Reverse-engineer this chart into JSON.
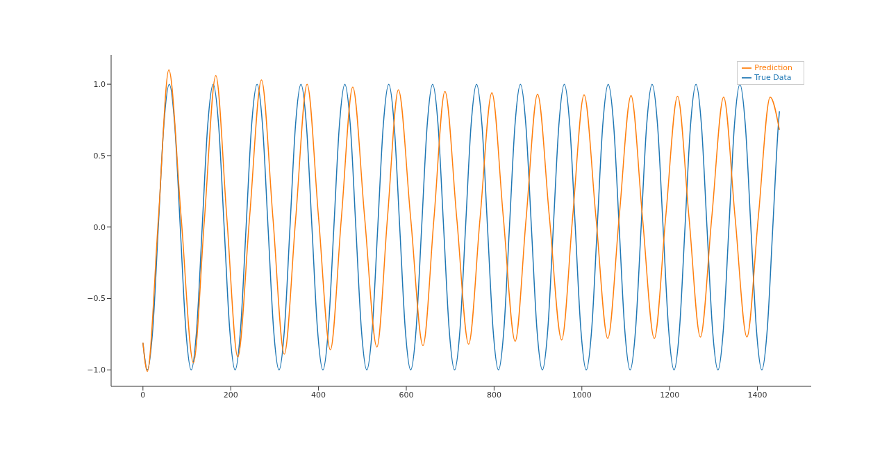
{
  "chart_data": {
    "type": "line",
    "xlim": [
      -72.5,
      1522.5
    ],
    "ylim": [
      -1.115,
      1.205
    ],
    "xticks": [
      0,
      200,
      400,
      600,
      800,
      1000,
      1200,
      1400
    ],
    "yticks": [
      {
        "value": -1,
        "label": "−1.0"
      },
      {
        "value": -0.5,
        "label": "−0.5"
      },
      {
        "value": 0,
        "label": "0.0"
      },
      {
        "value": 0.5,
        "label": "0.5"
      },
      {
        "value": 1,
        "label": "1.0"
      }
    ],
    "grid": false,
    "legend": "top right",
    "marker": "none",
    "line_style": "solid",
    "series": [
      {
        "name": "True Data",
        "color": "#1f77b4",
        "x": [
          0,
          10,
          22.5,
          35,
          47.5,
          60,
          72.5,
          85,
          97.5,
          110,
          122.5,
          135,
          147.5,
          160,
          172.5,
          185,
          197.5,
          210,
          222.5,
          235,
          247.5,
          260,
          272.5,
          285,
          297.5,
          310,
          322.5,
          335,
          347.5,
          360,
          372.5,
          385,
          397.5,
          410,
          422.5,
          435,
          447.5,
          460,
          472.5,
          485,
          497.5,
          510,
          522.5,
          535,
          547.5,
          560,
          572.5,
          585,
          597.5,
          610,
          622.5,
          635,
          647.5,
          660,
          672.5,
          685,
          697.5,
          710,
          722.5,
          735,
          747.5,
          760,
          772.5,
          785,
          797.5,
          810,
          822.5,
          835,
          847.5,
          860,
          872.5,
          885,
          897.5,
          910,
          922.5,
          935,
          947.5,
          960,
          972.5,
          985,
          997.5,
          1010,
          1022.5,
          1035,
          1047.5,
          1060,
          1072.5,
          1085,
          1097.5,
          1110,
          1122.5,
          1135,
          1147.5,
          1160,
          1172.5,
          1185,
          1197.5,
          1210,
          1222.5,
          1235,
          1247.5,
          1260,
          1272.5,
          1285,
          1297.5,
          1310,
          1322.5,
          1335,
          1347.5,
          1360,
          1372.5,
          1385,
          1397.5,
          1410,
          1422.5,
          1435,
          1447.5,
          1450
        ],
        "values": [
          -0.81,
          -1,
          -0.71,
          0,
          0.71,
          1,
          0.71,
          0,
          -0.71,
          -1,
          -0.71,
          0,
          0.71,
          1,
          0.71,
          0,
          -0.71,
          -1,
          -0.71,
          0,
          0.71,
          1,
          0.71,
          0,
          -0.71,
          -1,
          -0.71,
          0,
          0.71,
          1,
          0.71,
          0,
          -0.71,
          -1,
          -0.71,
          0,
          0.71,
          1,
          0.71,
          0,
          -0.71,
          -1,
          -0.71,
          0,
          0.71,
          1,
          0.71,
          0,
          -0.71,
          -1,
          -0.71,
          0,
          0.71,
          1,
          0.71,
          0,
          -0.71,
          -1,
          -0.71,
          0,
          0.71,
          1,
          0.71,
          0,
          -0.71,
          -1,
          -0.71,
          0,
          0.71,
          1,
          0.71,
          0,
          -0.71,
          -1,
          -0.71,
          0,
          0.71,
          1,
          0.71,
          0,
          -0.71,
          -1,
          -0.71,
          0,
          0.71,
          1,
          0.71,
          0,
          -0.71,
          -1,
          -0.71,
          0,
          0.71,
          1,
          0.71,
          0,
          -0.71,
          -1,
          -0.71,
          0,
          0.71,
          1,
          0.71,
          0,
          -0.71,
          -1,
          -0.71,
          0,
          0.71,
          1,
          0.71,
          0,
          -0.71,
          -1,
          -0.71,
          0,
          0.71,
          0.81
        ]
      },
      {
        "name": "Prediction",
        "color": "#ff7f0e",
        "x": [
          0,
          10,
          35,
          59,
          87,
          115,
          140,
          166,
          191,
          216,
          243,
          270,
          296,
          322,
          348,
          374,
          400,
          427,
          452,
          478,
          505,
          533,
          557,
          582,
          610,
          638,
          663,
          688,
          715,
          742,
          768,
          795,
          821,
          848,
          873,
          899,
          926,
          954,
          979,
          1005,
          1032,
          1059,
          1085,
          1112,
          1138,
          1165,
          1191,
          1218,
          1244,
          1270,
          1296,
          1323,
          1349,
          1376,
          1402,
          1429,
          1450
        ],
        "values": [
          -0.81,
          -1.01,
          0.05,
          1.1,
          0.07,
          -0.95,
          0.05,
          1.06,
          0.07,
          -0.91,
          0.07,
          1.03,
          0.07,
          -0.89,
          0.06,
          1.0,
          0.07,
          -0.86,
          0.06,
          0.98,
          0.07,
          -0.84,
          0.06,
          0.96,
          0.06,
          -0.83,
          0.06,
          0.95,
          0.06,
          -0.82,
          0.06,
          0.94,
          0.07,
          -0.8,
          0.06,
          0.93,
          0.07,
          -0.79,
          0.07,
          0.925,
          0.07,
          -0.78,
          0.07,
          0.92,
          0.07,
          -0.78,
          0.07,
          0.915,
          0.07,
          -0.77,
          0.07,
          0.91,
          0.07,
          -0.77,
          0.07,
          0.91,
          0.68
        ]
      }
    ]
  }
}
